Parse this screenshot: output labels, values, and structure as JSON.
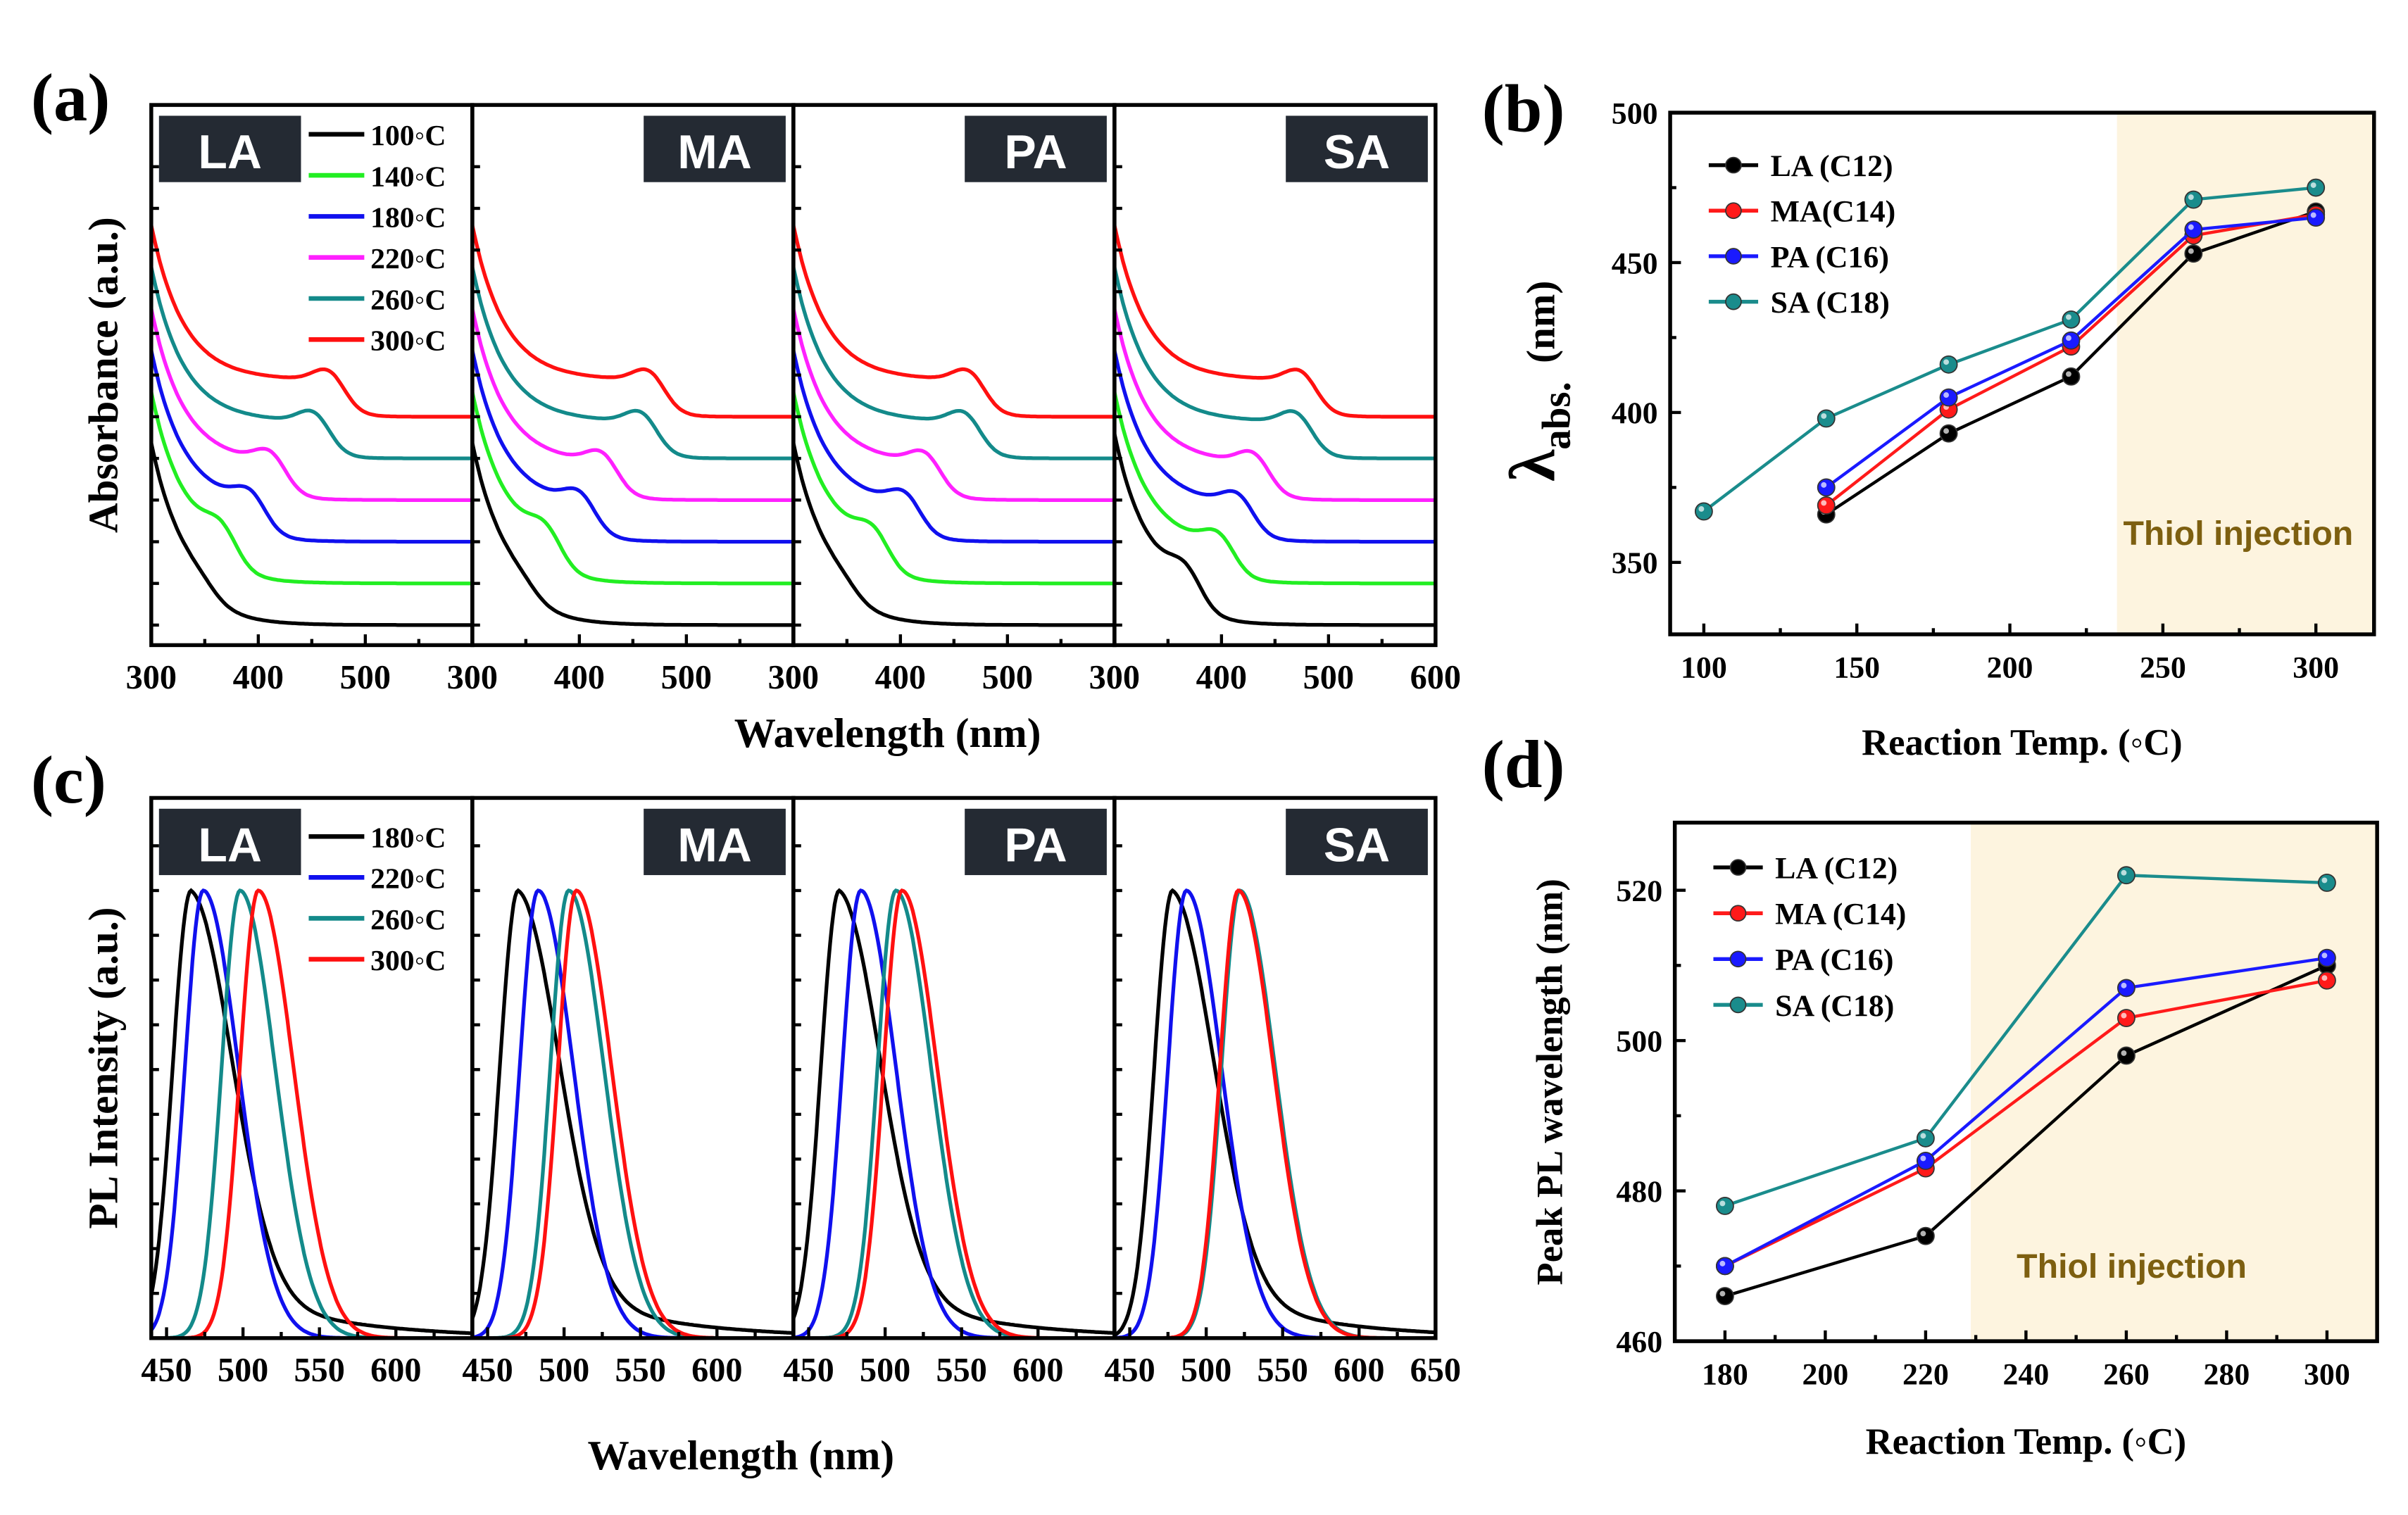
{
  "panel_labels": {
    "a": "(a)",
    "b": "(b)",
    "c": "(c)",
    "d": "(d)"
  },
  "colors": {
    "temp_100": "#000000",
    "temp_140": "#22ee22",
    "temp_180": "#1010ee",
    "temp_220": "#ff20ff",
    "temp_260": "#138a8a",
    "temp_300": "#ff1010",
    "LA": "#000000",
    "MA": "#ff1a1a",
    "PA": "#1a1aff",
    "SA": "#1a8c8c",
    "label_box": "#242a33",
    "thiol_shade": "#fdf4df",
    "thiol_text": "#7d5f10"
  },
  "chart_data": [
    {
      "panel": "(a)",
      "type": "line",
      "xlabel": "Wavelength (nm)",
      "ylabel": "Absorbance (a.u.)",
      "xlim": [
        300,
        600
      ],
      "x_tick_labels": [
        "300",
        "400",
        "500"
      ],
      "x_last_tick_label": "600",
      "stacked_offset": true,
      "subpanels": [
        "LA",
        "MA",
        "PA",
        "SA"
      ],
      "legend": [
        "100◦C",
        "140◦C",
        "180◦C",
        "220◦C",
        "260◦C",
        "300◦C"
      ],
      "series_colors": [
        "temp_100",
        "temp_140",
        "temp_180",
        "temp_220",
        "temp_260",
        "temp_300"
      ],
      "exciton_peak_nm": {
        "LA": [
          null,
          366,
          393,
          412,
          453,
          467
        ],
        "MA": [
          null,
          369,
          401,
          422,
          459,
          466
        ],
        "PA": [
          null,
          375,
          405,
          424,
          461,
          465
        ],
        "SA": [
          367,
          398,
          416,
          431,
          471,
          475
        ]
      }
    },
    {
      "panel": "(b)",
      "type": "line",
      "xlabel": "Reaction Temp. (◦C)",
      "ylabel": {
        "symbol": "λ",
        "subscript": "abs.",
        "unit": "(nm)"
      },
      "xlim": [
        89,
        319
      ],
      "ylim": [
        326,
        500
      ],
      "x_ticks": [
        100,
        150,
        200,
        250,
        300
      ],
      "y_ticks": [
        350,
        400,
        450,
        500
      ],
      "shaded_region": {
        "from": 235,
        "label": "Thiol injection"
      },
      "legend_position": "top-left",
      "series": [
        {
          "name": "LA (C12)",
          "color": "LA",
          "x": [
            140,
            180,
            220,
            260,
            300
          ],
          "y": [
            366,
            393,
            412,
            453,
            467
          ]
        },
        {
          "name": "MA(C14)",
          "color": "MA",
          "x": [
            140,
            180,
            220,
            260,
            300
          ],
          "y": [
            369,
            401,
            422,
            459,
            466
          ]
        },
        {
          "name": "PA (C16)",
          "color": "PA",
          "x": [
            140,
            180,
            220,
            260,
            300
          ],
          "y": [
            375,
            405,
            424,
            461,
            465
          ]
        },
        {
          "name": "SA (C18)",
          "color": "SA",
          "x": [
            100,
            140,
            180,
            220,
            260,
            300
          ],
          "y": [
            367,
            398,
            416,
            431,
            471,
            475
          ]
        }
      ]
    },
    {
      "panel": "(c)",
      "type": "line",
      "xlabel": "Wavelength (nm)",
      "ylabel": "PL Intensity (a.u.)",
      "xlim": [
        440,
        650
      ],
      "x_tick_labels": [
        "450",
        "500",
        "550",
        "600"
      ],
      "x_last_tick_label": "650",
      "normalized": true,
      "subpanels": [
        "LA",
        "MA",
        "PA",
        "SA"
      ],
      "legend": [
        "180◦C",
        "220◦C",
        "260◦C",
        "300◦C"
      ],
      "series_colors": [
        "temp_100",
        "temp_180",
        "temp_260",
        "temp_300"
      ],
      "peak_nm": {
        "LA": [
          466,
          474,
          498,
          510
        ],
        "MA": [
          470,
          483,
          503,
          508
        ],
        "PA": [
          470,
          484,
          507,
          511
        ],
        "SA": [
          478,
          487,
          522,
          521
        ]
      }
    },
    {
      "panel": "(d)",
      "type": "line",
      "xlabel": "Reaction Temp. (◦C)",
      "ylabel": "Peak PL wavelength (nm)",
      "xlim": [
        170,
        310
      ],
      "ylim": [
        460,
        529
      ],
      "x_ticks": [
        180,
        200,
        220,
        240,
        260,
        280,
        300
      ],
      "y_ticks": [
        460,
        480,
        500,
        520
      ],
      "shaded_region": {
        "from": 229,
        "label": "Thiol injection"
      },
      "legend_position": "top-left",
      "series": [
        {
          "name": "LA  (C12)",
          "color": "LA",
          "x": [
            180,
            220,
            260,
            300
          ],
          "y": [
            466,
            474,
            498,
            510
          ]
        },
        {
          "name": "MA (C14)",
          "color": "MA",
          "x": [
            180,
            220,
            260,
            300
          ],
          "y": [
            470,
            483,
            503,
            508
          ]
        },
        {
          "name": "PA  (C16)",
          "color": "PA",
          "x": [
            180,
            220,
            260,
            300
          ],
          "y": [
            470,
            484,
            507,
            511
          ]
        },
        {
          "name": "SA  (C18)",
          "color": "SA",
          "x": [
            180,
            220,
            260,
            300
          ],
          "y": [
            478,
            487,
            522,
            521
          ]
        }
      ]
    }
  ]
}
